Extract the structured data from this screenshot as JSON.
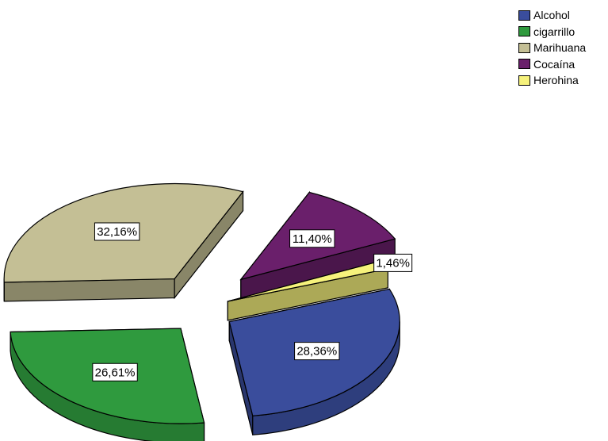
{
  "chart_data": {
    "type": "pie",
    "title": "",
    "labels": [
      "Alcohol",
      "cigarrillo",
      "Marihuana",
      "Cocaína",
      "Herohina"
    ],
    "values": [
      28.36,
      26.61,
      32.16,
      11.4,
      1.46
    ],
    "data_labels": [
      "28,36%",
      "26,61%",
      "32,16%",
      "11,40%",
      "1,46%"
    ],
    "colors": [
      "#3a4d9c",
      "#2f9a3e",
      "#c4bf95",
      "#6a1f6b",
      "#f6f27c"
    ],
    "style": "3d-exploded",
    "legend_position": "top-right"
  }
}
